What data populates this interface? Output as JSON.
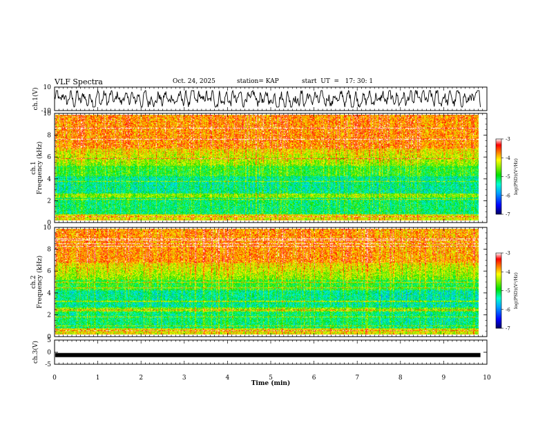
{
  "header": {
    "title": "VLF Spectra",
    "date": "Oct. 24, 2025",
    "station": "station= KAP",
    "start": "start  UT  =   17: 30: 1"
  },
  "chart_data": [
    {
      "type": "line",
      "name": "ch1-waveform",
      "ylabel": "ch.1(V)",
      "ylim": [
        -10,
        10
      ],
      "yticks": [
        "10",
        "-10"
      ],
      "x_range_min": [
        0,
        9.85
      ],
      "description_values": "noisy waveform oscillating roughly between -6 and 6 V"
    },
    {
      "type": "heatmap",
      "name": "ch1-spectrogram",
      "ylabel_top": "ch.1",
      "ylabel": "Frequency  (kHz)",
      "ylim": [
        0,
        10
      ],
      "yticks": [
        "0",
        "2",
        "4",
        "6",
        "8",
        "10"
      ],
      "colorbar": {
        "label": "log(PSD)(V²/Hz)",
        "range": [
          -7,
          -3
        ],
        "ticks": [
          "-3",
          "-4",
          "-5",
          "-6",
          "-7"
        ]
      }
    },
    {
      "type": "heatmap",
      "name": "ch2-spectrogram",
      "ylabel_top": "ch.2",
      "ylabel": "Frequency  (kHz)",
      "ylim": [
        0,
        10
      ],
      "yticks": [
        "0",
        "2",
        "4",
        "6",
        "8",
        "10"
      ],
      "colorbar": {
        "label": "log(PSD)(V²/Hz)",
        "range": [
          -7,
          -3
        ],
        "ticks": [
          "-3",
          "-4",
          "-5",
          "-6",
          "-7"
        ]
      }
    },
    {
      "type": "line",
      "name": "ch3-signal",
      "ylabel": "ch.3(V)",
      "ylim": [
        -5,
        5
      ],
      "yticks": [
        "5",
        "0",
        "-5"
      ],
      "constant_level": -1.2
    }
  ],
  "xaxis": {
    "label": "Time  (min)",
    "range": [
      0,
      10
    ],
    "ticks": [
      "0",
      "1",
      "2",
      "3",
      "4",
      "5",
      "6",
      "7",
      "8",
      "9",
      "10"
    ]
  },
  "colors": {
    "scale": [
      "#000070",
      "#0000ff",
      "#00b0ff",
      "#00ffc0",
      "#00e000",
      "#b0f000",
      "#ffff00",
      "#ff9000",
      "#ff0000",
      "#ffffff"
    ]
  }
}
